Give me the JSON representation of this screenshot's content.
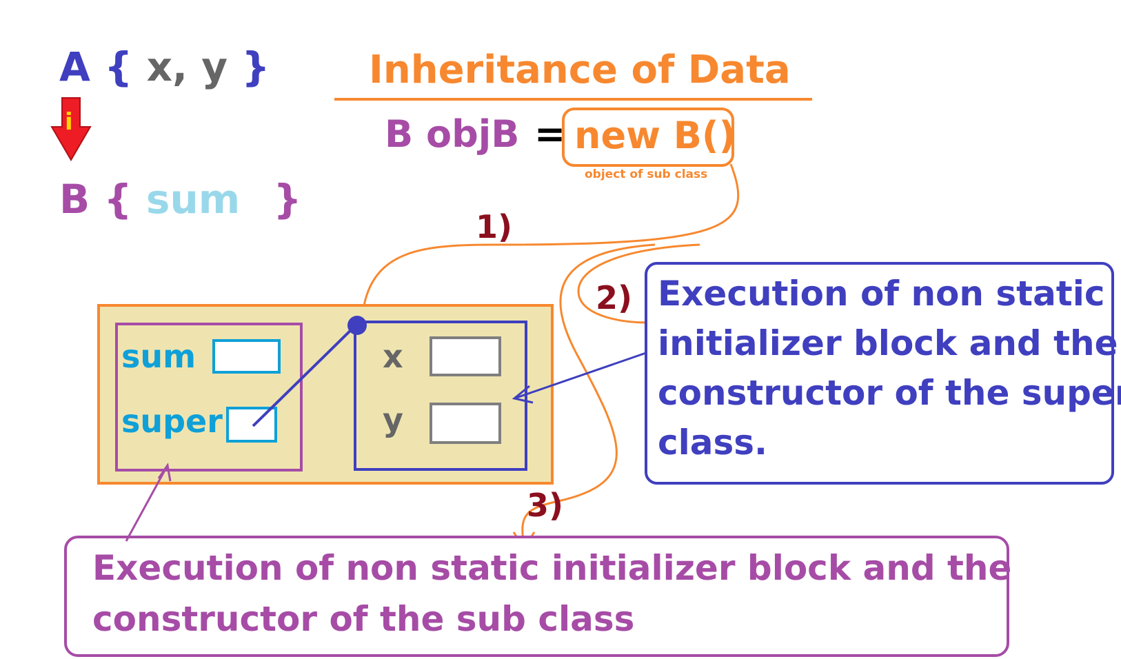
{
  "class_a": {
    "name": "A",
    "open": "{",
    "fields": "x, y",
    "close": "}"
  },
  "inherit_arrow": {
    "letter": "i"
  },
  "class_b": {
    "name": "B",
    "open": "{",
    "fields": "sum",
    "close": "}"
  },
  "title": "Inheritance of Data",
  "statement": {
    "type": "B",
    "var": "objB",
    "op": "=",
    "expr": "new B()",
    "caption": "object of sub class"
  },
  "steps": [
    "1)",
    "2)",
    "3)"
  ],
  "object_b": {
    "fields": [
      "sum",
      "super"
    ]
  },
  "object_a": {
    "fields": [
      "x",
      "y"
    ]
  },
  "notes": {
    "super_class": [
      "Execution of non static",
      "initializer block and the",
      "constructor of the super",
      "class."
    ],
    "sub_class": [
      "Execution of non static initializer block and the",
      "constructor of the sub class"
    ]
  },
  "colors": {
    "blue": "#3f3fbf",
    "gray": "#666666",
    "purple": "#a64ca6",
    "cyan": "#0fa0d8",
    "light_cyan": "#99d8ea",
    "orange": "#f7882f",
    "dark_red": "#8b0f1e",
    "object_fill": "#efe4b0",
    "arrow_red": "#ee1c24",
    "arrow_yellow": "#ffd800"
  }
}
